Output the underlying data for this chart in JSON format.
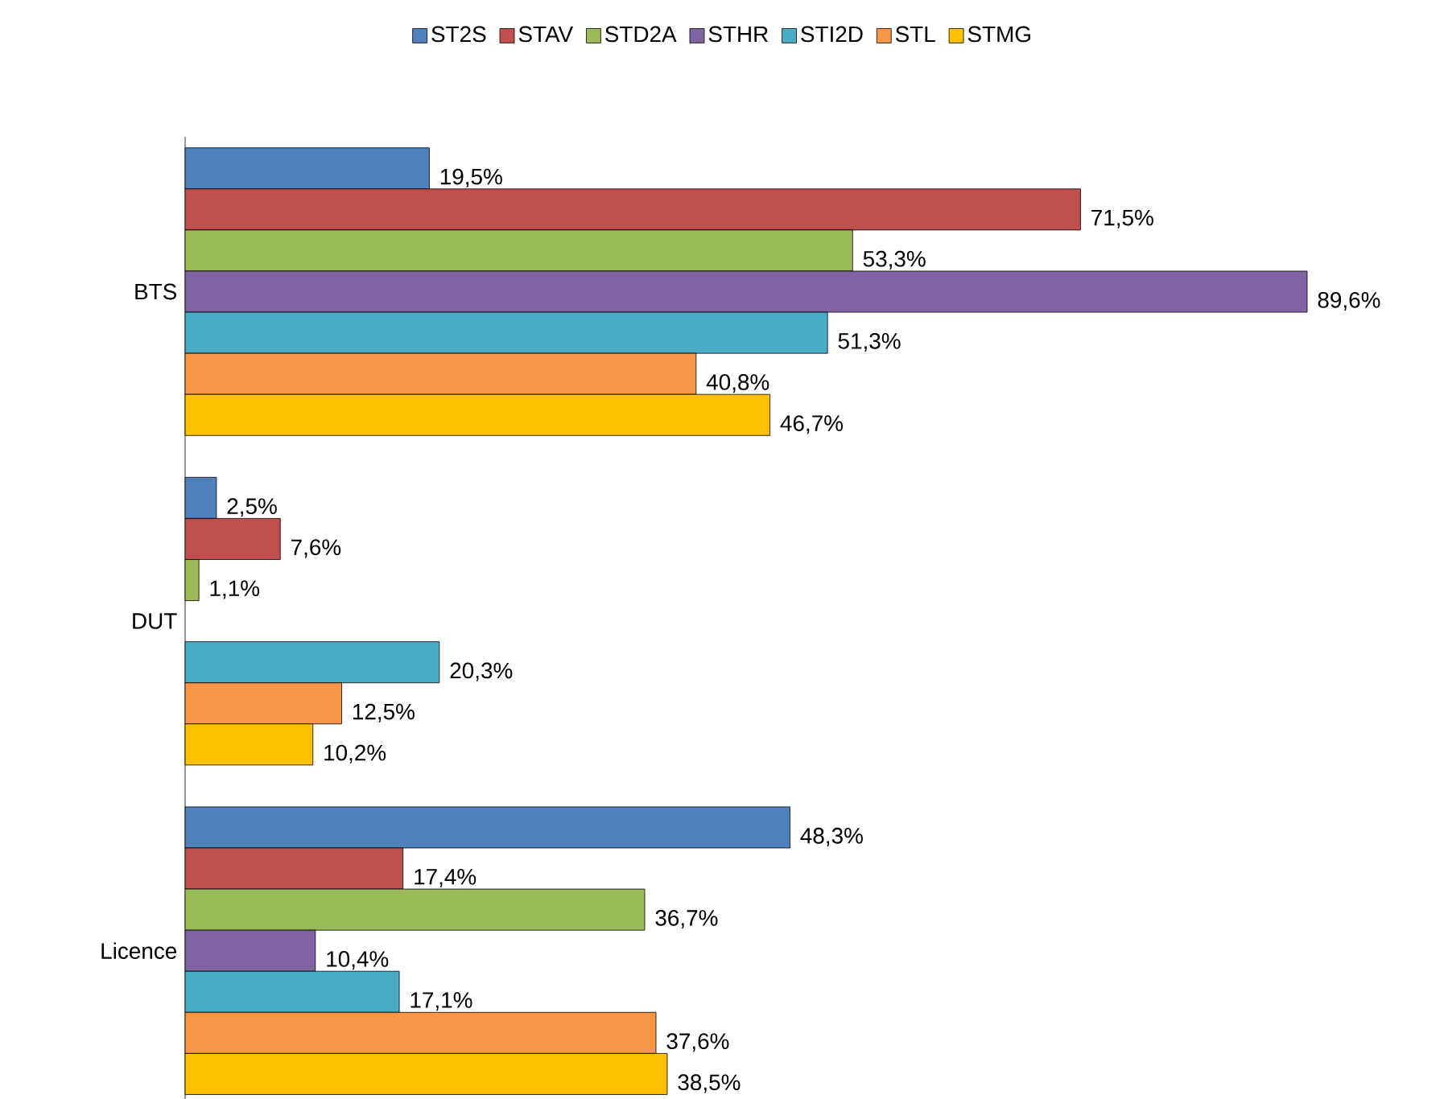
{
  "chart_data": {
    "type": "bar",
    "orientation": "horizontal",
    "categories": [
      "BTS",
      "DUT",
      "Licence"
    ],
    "tick_labels": "y",
    "legend": "top",
    "series": [
      {
        "name": "ST2S",
        "color": "#4f81bd",
        "values": [
          19.5,
          2.5,
          48.3
        ],
        "value_labels": [
          "19,5%",
          "2,5%",
          "48,3%"
        ]
      },
      {
        "name": "STAV",
        "color": "#c0504d",
        "values": [
          71.5,
          7.6,
          17.4
        ],
        "value_labels": [
          "71,5%",
          "7,6%",
          "17,4%"
        ]
      },
      {
        "name": "STD2A",
        "color": "#9bbb59",
        "values": [
          53.3,
          1.1,
          36.7
        ],
        "value_labels": [
          "53,3%",
          "1,1%",
          "36,7%"
        ]
      },
      {
        "name": "STHR",
        "color": "#8064a2",
        "values": [
          89.6,
          null,
          10.4
        ],
        "value_labels": [
          "89,6%",
          null,
          "10,4%"
        ]
      },
      {
        "name": "STI2D",
        "color": "#4bacc6",
        "values": [
          51.3,
          20.3,
          17.1
        ],
        "value_labels": [
          "51,3%",
          "20,3%",
          "17,1%"
        ]
      },
      {
        "name": "STL",
        "color": "#f79646",
        "values": [
          40.8,
          12.5,
          37.6
        ],
        "value_labels": [
          "40,8%",
          "12,5%",
          "37,6%"
        ]
      },
      {
        "name": "STMG",
        "color": "#ffc000",
        "values": [
          46.7,
          10.2,
          38.5
        ],
        "value_labels": [
          "46,7%",
          "10,2%",
          "38,5%"
        ]
      }
    ]
  }
}
